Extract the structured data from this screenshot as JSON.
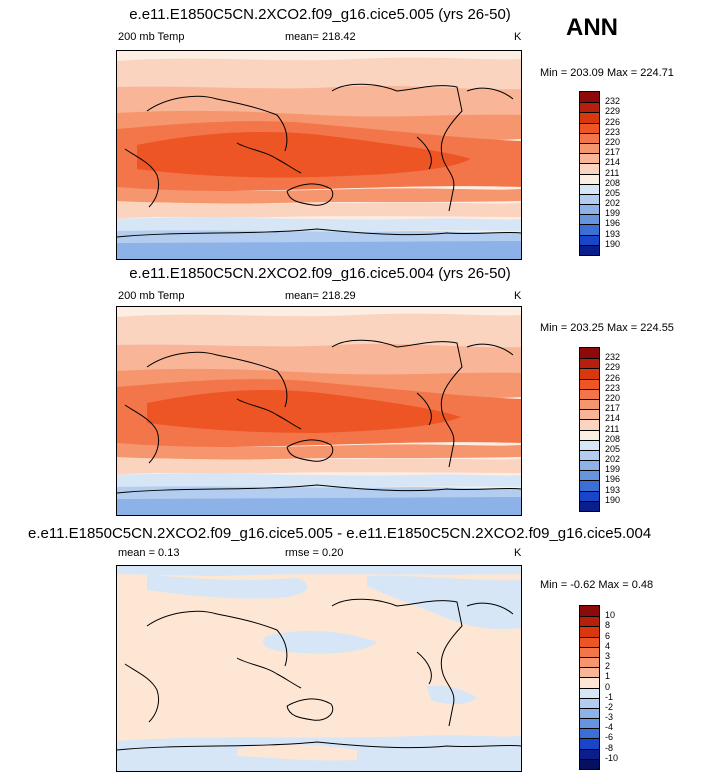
{
  "season": "ANN",
  "panels": [
    {
      "title": "e.e11.E1850C5CN.2XCO2.f09_g16.cice5.005 (yrs 26-50)",
      "left_label": "200 mb Temp",
      "center_label": "mean= 218.42",
      "units": "K",
      "minmax": "Min = 203.09 Max = 224.71",
      "levels": [
        "232",
        "229",
        "226",
        "223",
        "220",
        "217",
        "214",
        "211",
        "208",
        "205",
        "202",
        "199",
        "196",
        "193",
        "190"
      ],
      "colors": [
        "#8c0a0a",
        "#b5200c",
        "#d9380f",
        "#ee5524",
        "#f3754a",
        "#f6966f",
        "#f8b597",
        "#fbd4bf",
        "#fdeee3",
        "#d6e6f6",
        "#b2cdef",
        "#8cb2e8",
        "#6694de",
        "#3b6fd5",
        "#1a45c9",
        "#0a1f8c"
      ]
    },
    {
      "title": "e.e11.E1850C5CN.2XCO2.f09_g16.cice5.004 (yrs 26-50)",
      "left_label": "200 mb Temp",
      "center_label": "mean= 218.29",
      "units": "K",
      "minmax": "Min = 203.25 Max = 224.55",
      "levels": [
        "232",
        "229",
        "226",
        "223",
        "220",
        "217",
        "214",
        "211",
        "208",
        "205",
        "202",
        "199",
        "196",
        "193",
        "190"
      ],
      "colors": [
        "#8c0a0a",
        "#b5200c",
        "#d9380f",
        "#ee5524",
        "#f3754a",
        "#f6966f",
        "#f8b597",
        "#fbd4bf",
        "#fdeee3",
        "#d6e6f6",
        "#b2cdef",
        "#8cb2e8",
        "#6694de",
        "#3b6fd5",
        "#1a45c9",
        "#0a1f8c"
      ]
    },
    {
      "title": "e.e11.E1850C5CN.2XCO2.f09_g16.cice5.005 - e.e11.E1850C5CN.2XCO2.f09_g16.cice5.004",
      "left_label": "mean =   0.13",
      "center_label": "rmse =   0.20",
      "units": "K",
      "minmax": "Min =  -0.62 Max =   0.48",
      "levels": [
        "10",
        "8",
        "6",
        "4",
        "3",
        "2",
        "1",
        "0",
        "-1",
        "-2",
        "-3",
        "-4",
        "-6",
        "-8",
        "-10"
      ],
      "colors": [
        "#8c0a0a",
        "#b5200c",
        "#d9380f",
        "#ee5524",
        "#f3754a",
        "#f6966f",
        "#f8b597",
        "#fde6d4",
        "#d6e6f6",
        "#b2cdef",
        "#8cb2e8",
        "#6694de",
        "#3b6fd5",
        "#1a45c9",
        "#0a1f8c",
        "#061060"
      ]
    }
  ]
}
